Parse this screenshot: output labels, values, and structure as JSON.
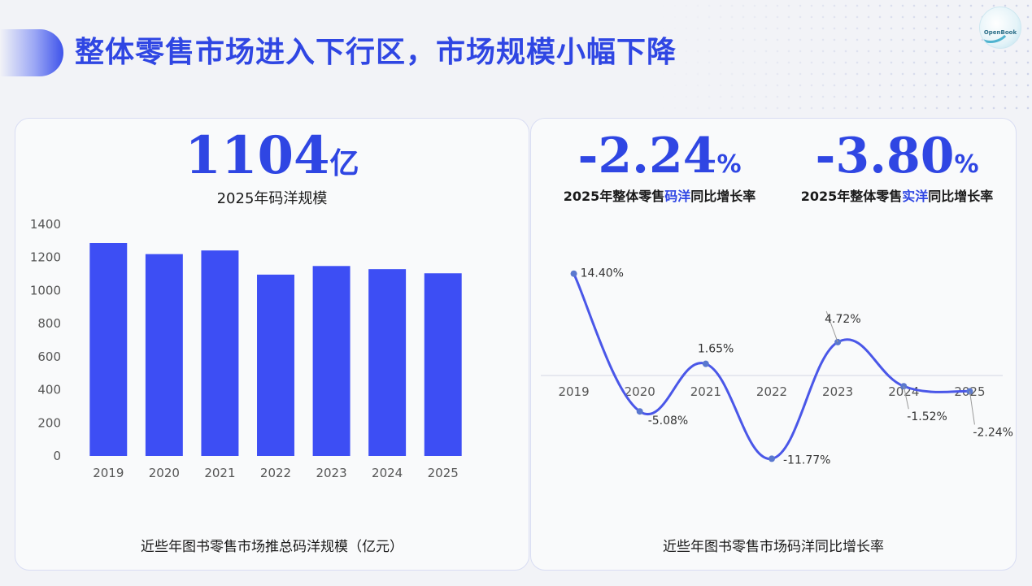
{
  "header": {
    "title": "整体零售市场进入下行区，市场规模小幅下降",
    "logo_text": "OpenBook"
  },
  "left_panel": {
    "big_value": "1104",
    "big_unit": "亿",
    "big_label": "2025年码洋规模",
    "caption": "近些年图书零售市场推总码洋规模（亿元）"
  },
  "right_panel": {
    "kpis": [
      {
        "value": "-2.24",
        "unit": "%",
        "label_pre": "2025年整体零售",
        "label_hl": "码洋",
        "label_post": "同比增长率"
      },
      {
        "value": "-3.80",
        "unit": "%",
        "label_pre": "2025年整体零售",
        "label_hl": "实洋",
        "label_post": "同比增长率"
      }
    ],
    "caption": "近些年图书零售市场码洋同比增长率"
  },
  "colors": {
    "accent": "#2f46e3",
    "bar": "#3d4ef4",
    "line": "#4a57e8"
  },
  "chart_data": [
    {
      "type": "bar",
      "categories": [
        "2019",
        "2020",
        "2021",
        "2022",
        "2023",
        "2024",
        "2025"
      ],
      "values": [
        1287,
        1220,
        1242,
        1096,
        1148,
        1129,
        1104
      ],
      "ylim": [
        0,
        1400
      ],
      "yticks": [
        "0",
        "200",
        "400",
        "600",
        "800",
        "1000",
        "1200",
        "1400"
      ],
      "grid": false,
      "legend": "none"
    },
    {
      "type": "line",
      "categories": [
        "2019",
        "2020",
        "2021",
        "2022",
        "2023",
        "2024",
        "2025"
      ],
      "values": [
        14.4,
        -5.08,
        1.65,
        -11.77,
        4.72,
        -1.52,
        -2.24
      ],
      "labels": [
        "14.40%",
        "-5.08%",
        "1.65%",
        "-11.77%",
        "4.72%",
        "-1.52%",
        "-2.24%"
      ],
      "ylim": [
        -12,
        15
      ],
      "smooth": true,
      "grid": false,
      "legend": "none"
    }
  ]
}
